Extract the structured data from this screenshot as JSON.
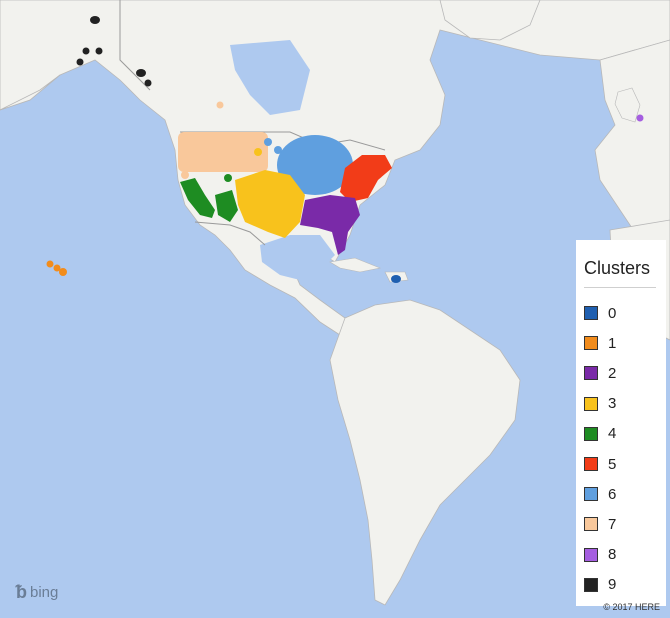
{
  "colors": {
    "water": "#aec9ef",
    "land": "#f2f2ee",
    "border": "#9a9a9a"
  },
  "legend": {
    "title": "Clusters",
    "items": [
      {
        "label": "0",
        "color": "#1f5fb0"
      },
      {
        "label": "1",
        "color": "#f28c1c"
      },
      {
        "label": "2",
        "color": "#7a2aa8"
      },
      {
        "label": "3",
        "color": "#f8c21c"
      },
      {
        "label": "4",
        "color": "#1e8c22"
      },
      {
        "label": "5",
        "color": "#f23c18"
      },
      {
        "label": "6",
        "color": "#5f9fdf"
      },
      {
        "label": "7",
        "color": "#f9c89b"
      },
      {
        "label": "8",
        "color": "#a55ee0"
      },
      {
        "label": "9",
        "color": "#222222"
      }
    ]
  },
  "branding": {
    "logo_icon": "bing-logo-icon",
    "logo_text": "bing",
    "copyright": "© 2017 HERE"
  }
}
